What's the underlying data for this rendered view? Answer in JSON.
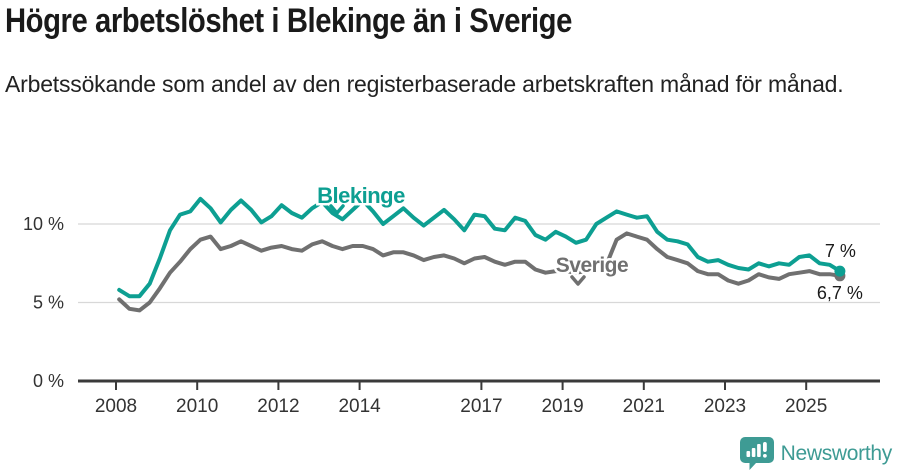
{
  "chart_data": {
    "type": "line",
    "title": "Högre arbetslöshet i Blekinge än i Sverige",
    "subtitle": "Arbetssökande som andel av den registerbaserade arbetskraften månad för månad.",
    "unit": "%",
    "x_start": 2008.08,
    "x_step_years": 0.25,
    "x_end": 2025.83,
    "xlim": [
      2007.05,
      2026.8
    ],
    "ylim": [
      0,
      13.4
    ],
    "grid": "horizontal",
    "y_ticks": [
      {
        "v": 0,
        "label": "0 %"
      },
      {
        "v": 5,
        "label": "5 %"
      },
      {
        "v": 10,
        "label": "10 %"
      }
    ],
    "x_ticks": [
      {
        "v": 2008,
        "label": "2008"
      },
      {
        "v": 2010,
        "label": "2010"
      },
      {
        "v": 2012,
        "label": "2012"
      },
      {
        "v": 2014,
        "label": "2014"
      },
      {
        "v": 2017,
        "label": "2017"
      },
      {
        "v": 2019,
        "label": "2019"
      },
      {
        "v": 2021,
        "label": "2021"
      },
      {
        "v": 2023,
        "label": "2023"
      },
      {
        "v": 2025,
        "label": "2025"
      }
    ],
    "series": [
      {
        "name": "Blekinge",
        "color": "#0d9f92",
        "end_label": "7 %",
        "end_value": 7.0,
        "values": [
          5.8,
          5.4,
          5.4,
          6.2,
          7.8,
          9.6,
          10.6,
          10.8,
          11.6,
          11.0,
          10.1,
          10.9,
          11.5,
          10.9,
          10.1,
          10.5,
          11.2,
          10.7,
          10.4,
          11.0,
          11.4,
          10.7,
          10.3,
          10.9,
          11.5,
          10.8,
          10.0,
          10.5,
          11.0,
          10.4,
          9.9,
          10.4,
          10.9,
          10.3,
          9.6,
          10.6,
          10.5,
          9.7,
          9.6,
          10.4,
          10.2,
          9.3,
          9.0,
          9.5,
          9.2,
          8.8,
          9.0,
          10.0,
          10.4,
          10.8,
          10.6,
          10.4,
          10.5,
          9.5,
          9.0,
          8.9,
          8.7,
          7.9,
          7.6,
          7.7,
          7.4,
          7.2,
          7.1,
          7.5,
          7.3,
          7.5,
          7.4,
          7.9,
          8.0,
          7.5,
          7.4,
          7.0
        ]
      },
      {
        "name": "Sverige",
        "color": "#707070",
        "end_label": "6,7 %",
        "end_value": 6.7,
        "values": [
          5.2,
          4.6,
          4.5,
          5.0,
          5.9,
          6.9,
          7.6,
          8.4,
          9.0,
          9.2,
          8.4,
          8.6,
          8.9,
          8.6,
          8.3,
          8.5,
          8.6,
          8.4,
          8.3,
          8.7,
          8.9,
          8.6,
          8.4,
          8.6,
          8.6,
          8.4,
          8.0,
          8.2,
          8.2,
          8.0,
          7.7,
          7.9,
          8.0,
          7.8,
          7.5,
          7.8,
          7.9,
          7.6,
          7.4,
          7.6,
          7.6,
          7.1,
          6.9,
          7.0,
          7.0,
          6.9,
          7.0,
          7.1,
          7.4,
          9.0,
          9.4,
          9.2,
          9.0,
          8.4,
          7.9,
          7.7,
          7.5,
          7.0,
          6.8,
          6.8,
          6.4,
          6.2,
          6.4,
          6.8,
          6.6,
          6.5,
          6.8,
          6.9,
          7.0,
          6.8,
          6.8,
          6.7
        ]
      }
    ],
    "colors": {
      "axis": "#3a3a3a",
      "gridline": "#d8d8d8",
      "tick_text": "#333333",
      "end_label_text": "#1a1a1a"
    }
  },
  "footer": {
    "brand": "Newsworthy",
    "brand_color": "#3e9b94",
    "logo_icon": "speech-bubble-bar-chart-icon"
  }
}
